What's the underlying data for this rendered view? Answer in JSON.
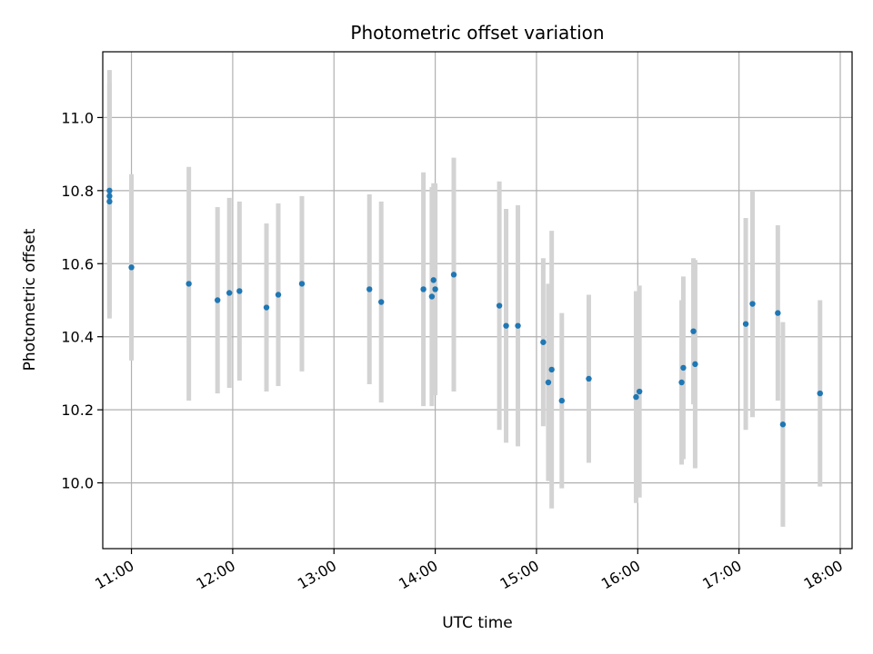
{
  "chart_data": {
    "type": "scatter",
    "title": "Photometric offset variation",
    "xlabel": "UTC time",
    "ylabel": "Photometric offset",
    "x_ticks": [
      "11:00",
      "12:00",
      "13:00",
      "14:00",
      "15:00",
      "16:00",
      "17:00",
      "18:00"
    ],
    "y_ticks": [
      "10.0",
      "10.2",
      "10.4",
      "10.6",
      "10.8",
      "11.0"
    ],
    "xlim": [
      "10:43",
      "18:07"
    ],
    "ylim": [
      9.82,
      11.18
    ],
    "grid": true,
    "point_color": "#1f77b4",
    "errorbar_color": "#d3d3d3",
    "points": [
      {
        "x": "10:47",
        "y": 10.77,
        "err": 0.32
      },
      {
        "x": "10:47",
        "y": 10.785,
        "err": 0.31
      },
      {
        "x": "10:47",
        "y": 10.8,
        "err": 0.33
      },
      {
        "x": "11:00",
        "y": 10.59,
        "err": 0.255
      },
      {
        "x": "11:34",
        "y": 10.545,
        "err": 0.32
      },
      {
        "x": "11:51",
        "y": 10.5,
        "err": 0.255
      },
      {
        "x": "11:58",
        "y": 10.52,
        "err": 0.26
      },
      {
        "x": "12:04",
        "y": 10.525,
        "err": 0.245
      },
      {
        "x": "12:20",
        "y": 10.48,
        "err": 0.23
      },
      {
        "x": "12:27",
        "y": 10.515,
        "err": 0.25
      },
      {
        "x": "12:41",
        "y": 10.545,
        "err": 0.24
      },
      {
        "x": "13:21",
        "y": 10.53,
        "err": 0.26
      },
      {
        "x": "13:28",
        "y": 10.495,
        "err": 0.275
      },
      {
        "x": "13:53",
        "y": 10.53,
        "err": 0.32
      },
      {
        "x": "13:58",
        "y": 10.51,
        "err": 0.3
      },
      {
        "x": "13:59",
        "y": 10.555,
        "err": 0.265
      },
      {
        "x": "14:00",
        "y": 10.53,
        "err": 0.29
      },
      {
        "x": "14:11",
        "y": 10.57,
        "err": 0.32
      },
      {
        "x": "14:38",
        "y": 10.485,
        "err": 0.34
      },
      {
        "x": "14:42",
        "y": 10.43,
        "err": 0.32
      },
      {
        "x": "14:49",
        "y": 10.43,
        "err": 0.33
      },
      {
        "x": "15:04",
        "y": 10.385,
        "err": 0.23
      },
      {
        "x": "15:07",
        "y": 10.275,
        "err": 0.27
      },
      {
        "x": "15:09",
        "y": 10.31,
        "err": 0.38
      },
      {
        "x": "15:15",
        "y": 10.225,
        "err": 0.24
      },
      {
        "x": "15:31",
        "y": 10.285,
        "err": 0.23
      },
      {
        "x": "15:59",
        "y": 10.235,
        "err": 0.29
      },
      {
        "x": "16:01",
        "y": 10.25,
        "err": 0.29
      },
      {
        "x": "16:26",
        "y": 10.275,
        "err": 0.225
      },
      {
        "x": "16:27",
        "y": 10.315,
        "err": 0.25
      },
      {
        "x": "16:33",
        "y": 10.415,
        "err": 0.2
      },
      {
        "x": "16:34",
        "y": 10.325,
        "err": 0.285
      },
      {
        "x": "17:04",
        "y": 10.435,
        "err": 0.29
      },
      {
        "x": "17:08",
        "y": 10.49,
        "err": 0.31
      },
      {
        "x": "17:23",
        "y": 10.465,
        "err": 0.24
      },
      {
        "x": "17:26",
        "y": 10.16,
        "err": 0.28
      },
      {
        "x": "17:48",
        "y": 10.245,
        "err": 0.255
      }
    ]
  }
}
